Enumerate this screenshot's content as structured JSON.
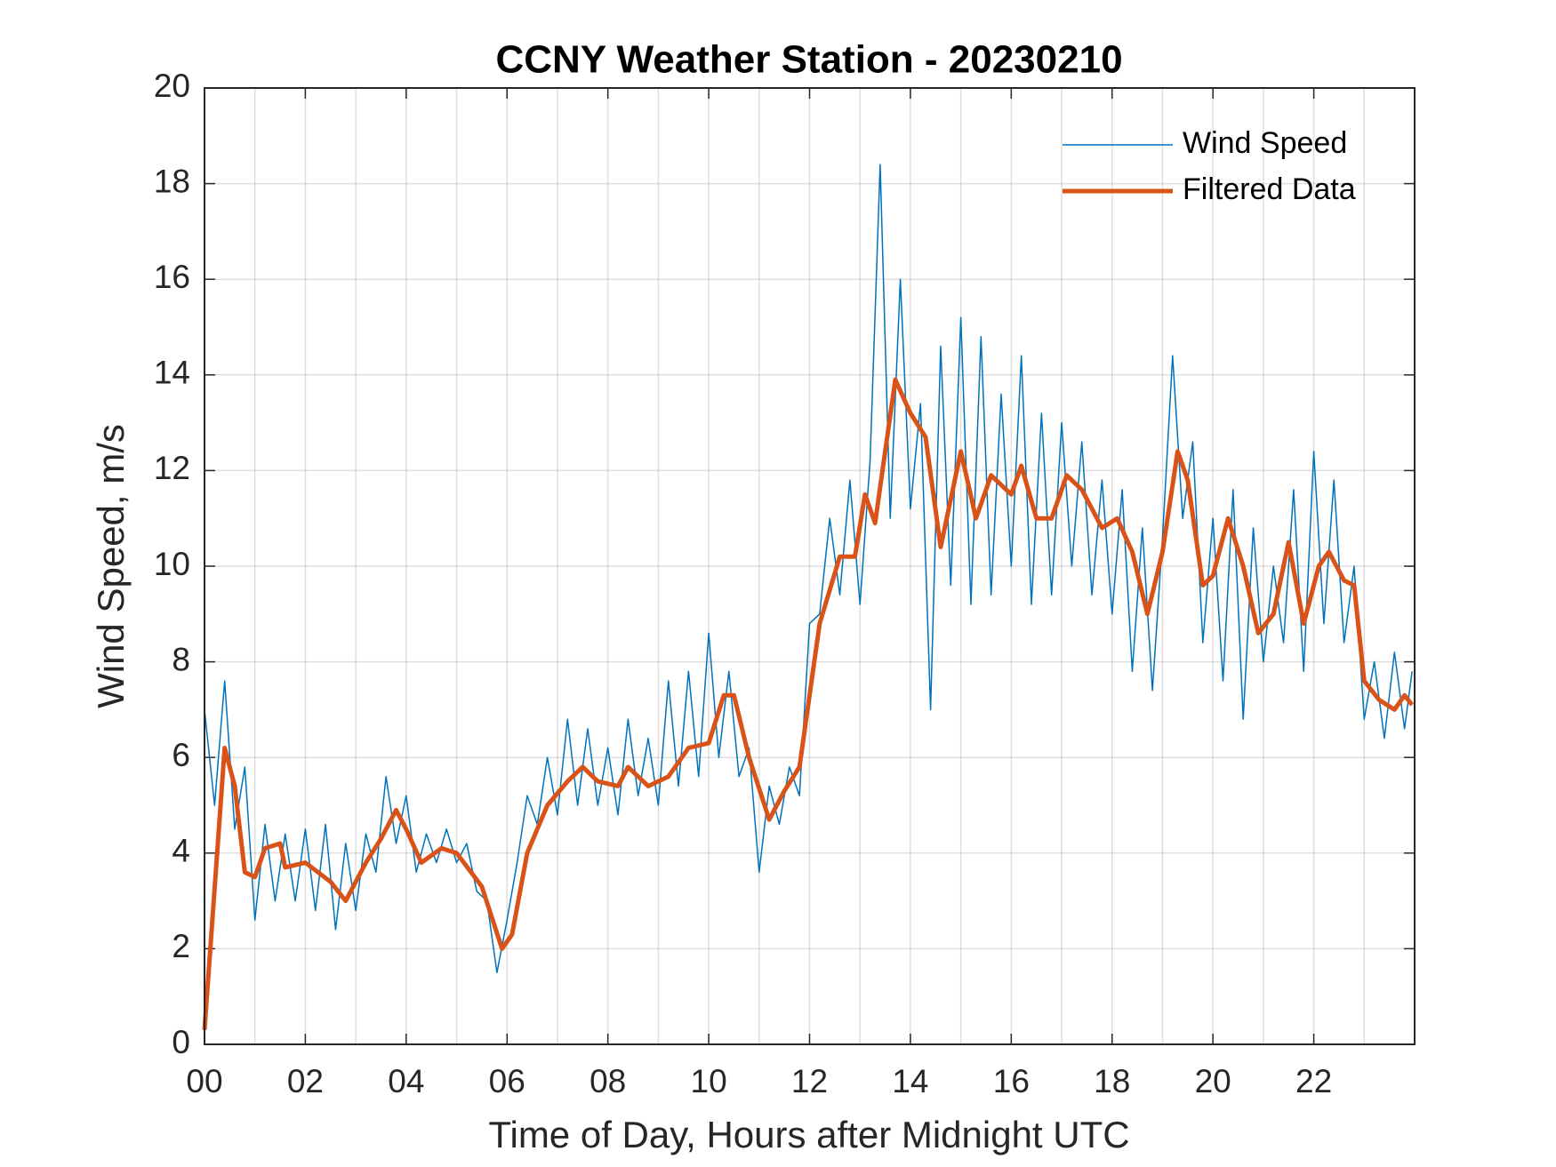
{
  "chart_data": {
    "type": "line",
    "title": "CCNY Weather Station - 20230210",
    "xlabel": "Time of Day, Hours after Midnight UTC",
    "ylabel": "Wind Speed, m/s",
    "xlim": [
      0,
      24
    ],
    "ylim": [
      0,
      20
    ],
    "xticks": [
      {
        "value": 0,
        "label": "00"
      },
      {
        "value": 2,
        "label": "02"
      },
      {
        "value": 4,
        "label": "04"
      },
      {
        "value": 6,
        "label": "06"
      },
      {
        "value": 8,
        "label": "08"
      },
      {
        "value": 10,
        "label": "10"
      },
      {
        "value": 12,
        "label": "12"
      },
      {
        "value": 14,
        "label": "14"
      },
      {
        "value": 16,
        "label": "16"
      },
      {
        "value": 18,
        "label": "18"
      },
      {
        "value": 20,
        "label": "20"
      },
      {
        "value": 22,
        "label": "22"
      }
    ],
    "xminorticks": [
      1,
      3,
      5,
      7,
      9,
      11,
      13,
      15,
      17,
      19,
      21,
      23
    ],
    "yticks": [
      0,
      2,
      4,
      6,
      8,
      10,
      12,
      14,
      16,
      18,
      20
    ],
    "grid": true,
    "legend": "northeast",
    "series": [
      {
        "name": "Wind Speed",
        "color": "#0072BD",
        "width": 1.5,
        "x": [
          0,
          0.2,
          0.4,
          0.6,
          0.8,
          1,
          1.2,
          1.4,
          1.6,
          1.8,
          2,
          2.2,
          2.4,
          2.6,
          2.8,
          3,
          3.2,
          3.4,
          3.6,
          3.8,
          4,
          4.2,
          4.4,
          4.6,
          4.8,
          5,
          5.2,
          5.4,
          5.6,
          5.8,
          6,
          6.2,
          6.4,
          6.6,
          6.8,
          7,
          7.2,
          7.4,
          7.6,
          7.8,
          8,
          8.2,
          8.4,
          8.6,
          8.8,
          9,
          9.2,
          9.4,
          9.6,
          9.8,
          10,
          10.2,
          10.4,
          10.6,
          10.8,
          11,
          11.2,
          11.4,
          11.6,
          11.8,
          12,
          12.2,
          12.4,
          12.6,
          12.8,
          13,
          13.2,
          13.4,
          13.6,
          13.8,
          14,
          14.2,
          14.4,
          14.6,
          14.8,
          15,
          15.2,
          15.4,
          15.6,
          15.8,
          16,
          16.2,
          16.4,
          16.6,
          16.8,
          17,
          17.2,
          17.4,
          17.6,
          17.8,
          18,
          18.2,
          18.4,
          18.6,
          18.8,
          19,
          19.2,
          19.4,
          19.6,
          19.8,
          20,
          20.2,
          20.4,
          20.6,
          20.8,
          21,
          21.2,
          21.4,
          21.6,
          21.8,
          22,
          22.2,
          22.4,
          22.6,
          22.8,
          23,
          23.2,
          23.4,
          23.6,
          23.8,
          23.95
        ],
        "values": [
          7.0,
          5.0,
          7.6,
          4.5,
          5.8,
          2.6,
          4.6,
          3.0,
          4.4,
          3.0,
          4.5,
          2.8,
          4.6,
          2.4,
          4.2,
          2.8,
          4.4,
          3.6,
          5.6,
          4.2,
          5.2,
          3.6,
          4.4,
          3.8,
          4.5,
          3.8,
          4.2,
          3.2,
          3.0,
          1.5,
          2.6,
          3.8,
          5.2,
          4.6,
          6.0,
          4.8,
          6.8,
          5.0,
          6.6,
          5.0,
          6.2,
          4.8,
          6.8,
          5.2,
          6.4,
          5.0,
          7.6,
          5.4,
          7.8,
          5.6,
          8.6,
          6.0,
          7.8,
          5.6,
          6.2,
          3.6,
          5.4,
          4.6,
          5.8,
          5.2,
          8.8,
          9.0,
          11.0,
          9.4,
          11.8,
          9.2,
          12.2,
          18.4,
          11.0,
          16.0,
          11.2,
          13.4,
          7.0,
          14.6,
          9.6,
          15.2,
          9.2,
          14.8,
          9.4,
          13.6,
          10.0,
          14.4,
          9.2,
          13.2,
          9.4,
          13.0,
          10.0,
          12.6,
          9.4,
          11.8,
          9.0,
          11.6,
          7.8,
          10.8,
          7.4,
          10.6,
          14.4,
          11.0,
          12.6,
          8.4,
          11.0,
          7.6,
          11.6,
          6.8,
          10.8,
          8.0,
          10.0,
          8.4,
          11.6,
          7.8,
          12.4,
          8.8,
          11.8,
          8.4,
          10.0,
          6.8,
          8.0,
          6.4,
          8.2,
          6.6,
          7.8
        ]
      },
      {
        "name": "Filtered Data",
        "color": "#D95319",
        "width": 5,
        "x": [
          0,
          0.4,
          0.6,
          0.8,
          1,
          1.2,
          1.5,
          1.6,
          2,
          2.5,
          2.8,
          3.2,
          3.5,
          3.8,
          4,
          4.3,
          4.7,
          5,
          5.5,
          5.9,
          6.1,
          6.4,
          6.8,
          7.2,
          7.5,
          7.8,
          8.2,
          8.4,
          8.8,
          9.2,
          9.6,
          10,
          10.3,
          10.5,
          10.8,
          11.2,
          11.5,
          11.8,
          12.2,
          12.6,
          12.9,
          13.1,
          13.3,
          13.7,
          14,
          14.3,
          14.6,
          15,
          15.3,
          15.6,
          16,
          16.2,
          16.5,
          16.8,
          17.1,
          17.4,
          17.8,
          18.1,
          18.4,
          18.7,
          19,
          19.3,
          19.5,
          19.8,
          20,
          20.3,
          20.6,
          20.9,
          21.2,
          21.5,
          21.8,
          22.1,
          22.3,
          22.6,
          22.8,
          23,
          23.3,
          23.6,
          23.8,
          23.95
        ],
        "values": [
          0.3,
          6.2,
          5.4,
          3.6,
          3.5,
          4.1,
          4.2,
          3.7,
          3.8,
          3.4,
          3.0,
          3.8,
          4.3,
          4.9,
          4.5,
          3.8,
          4.1,
          4.0,
          3.3,
          2.0,
          2.3,
          4.0,
          5.0,
          5.5,
          5.8,
          5.5,
          5.4,
          5.8,
          5.4,
          5.6,
          6.2,
          6.3,
          7.3,
          7.3,
          6.0,
          4.7,
          5.3,
          5.8,
          8.8,
          10.2,
          10.2,
          11.5,
          10.9,
          13.9,
          13.2,
          12.7,
          10.4,
          12.4,
          11.0,
          11.9,
          11.5,
          12.1,
          11.0,
          11.0,
          11.9,
          11.6,
          10.8,
          11.0,
          10.3,
          9.0,
          10.3,
          12.4,
          11.8,
          9.6,
          9.8,
          11.0,
          10.0,
          8.6,
          9.0,
          10.5,
          8.8,
          10.0,
          10.3,
          9.7,
          9.6,
          7.6,
          7.2,
          7.0,
          7.3,
          7.1
        ]
      }
    ]
  }
}
